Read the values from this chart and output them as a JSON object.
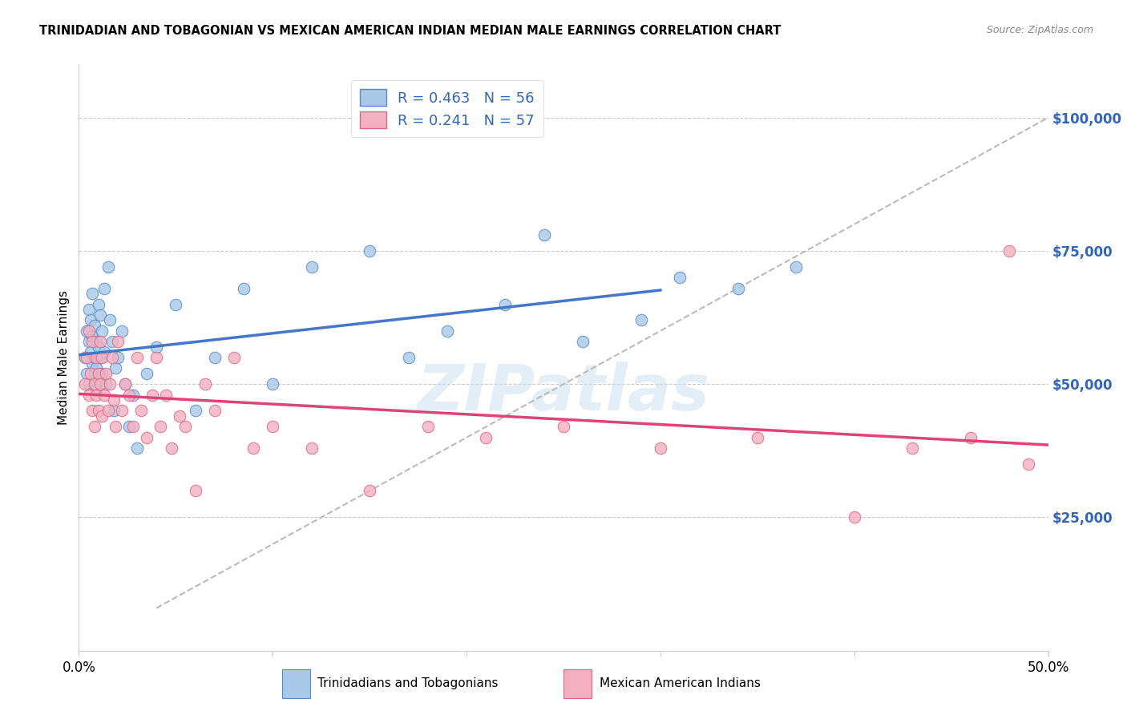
{
  "title": "TRINIDADIAN AND TOBAGONIAN VS MEXICAN AMERICAN INDIAN MEDIAN MALE EARNINGS CORRELATION CHART",
  "source": "Source: ZipAtlas.com",
  "ylabel": "Median Male Earnings",
  "xlim": [
    0,
    0.5
  ],
  "ylim": [
    0,
    110000
  ],
  "yticks": [
    0,
    25000,
    50000,
    75000,
    100000
  ],
  "xticks": [
    0.0,
    0.1,
    0.2,
    0.3,
    0.4,
    0.5
  ],
  "blue_R": 0.463,
  "blue_N": 56,
  "pink_R": 0.241,
  "pink_N": 57,
  "blue_label": "Trinidadians and Tobagonians",
  "pink_label": "Mexican American Indians",
  "blue_color": "#a8c8e8",
  "pink_color": "#f4b0c0",
  "blue_edge_color": "#5588cc",
  "pink_edge_color": "#dd6688",
  "blue_line_color": "#4477cc",
  "pink_line_color": "#dd4477",
  "right_label_color": "#3366bb",
  "dashed_line_color": "#bbbbbb",
  "watermark_color": "#c8dff0",
  "watermark_text": "ZIPatlas",
  "blue_x": [
    0.003,
    0.004,
    0.004,
    0.005,
    0.005,
    0.005,
    0.006,
    0.006,
    0.007,
    0.007,
    0.007,
    0.008,
    0.008,
    0.008,
    0.009,
    0.009,
    0.009,
    0.01,
    0.01,
    0.01,
    0.011,
    0.011,
    0.012,
    0.012,
    0.013,
    0.013,
    0.014,
    0.015,
    0.016,
    0.017,
    0.018,
    0.019,
    0.02,
    0.022,
    0.024,
    0.026,
    0.028,
    0.03,
    0.035,
    0.04,
    0.05,
    0.06,
    0.07,
    0.085,
    0.1,
    0.12,
    0.15,
    0.17,
    0.19,
    0.22,
    0.24,
    0.26,
    0.29,
    0.31,
    0.34,
    0.37
  ],
  "blue_y": [
    55000,
    60000,
    52000,
    58000,
    64000,
    50000,
    56000,
    62000,
    54000,
    67000,
    59000,
    52000,
    61000,
    55000,
    58000,
    49000,
    53000,
    65000,
    57000,
    51000,
    63000,
    55000,
    60000,
    52000,
    68000,
    56000,
    50000,
    72000,
    62000,
    58000,
    45000,
    53000,
    55000,
    60000,
    50000,
    42000,
    48000,
    38000,
    52000,
    57000,
    65000,
    45000,
    55000,
    68000,
    50000,
    72000,
    75000,
    55000,
    60000,
    65000,
    78000,
    58000,
    62000,
    70000,
    68000,
    72000
  ],
  "pink_x": [
    0.003,
    0.004,
    0.005,
    0.005,
    0.006,
    0.007,
    0.007,
    0.008,
    0.008,
    0.009,
    0.009,
    0.01,
    0.01,
    0.011,
    0.011,
    0.012,
    0.012,
    0.013,
    0.014,
    0.015,
    0.016,
    0.017,
    0.018,
    0.019,
    0.02,
    0.022,
    0.024,
    0.026,
    0.028,
    0.03,
    0.032,
    0.035,
    0.038,
    0.04,
    0.042,
    0.045,
    0.048,
    0.052,
    0.055,
    0.06,
    0.065,
    0.07,
    0.08,
    0.09,
    0.1,
    0.12,
    0.15,
    0.18,
    0.21,
    0.25,
    0.3,
    0.35,
    0.4,
    0.43,
    0.46,
    0.48,
    0.49
  ],
  "pink_y": [
    50000,
    55000,
    48000,
    60000,
    52000,
    45000,
    58000,
    50000,
    42000,
    55000,
    48000,
    52000,
    45000,
    58000,
    50000,
    44000,
    55000,
    48000,
    52000,
    45000,
    50000,
    55000,
    47000,
    42000,
    58000,
    45000,
    50000,
    48000,
    42000,
    55000,
    45000,
    40000,
    48000,
    55000,
    42000,
    48000,
    38000,
    44000,
    42000,
    30000,
    50000,
    45000,
    55000,
    38000,
    42000,
    38000,
    30000,
    42000,
    40000,
    42000,
    38000,
    40000,
    25000,
    38000,
    40000,
    75000,
    35000
  ]
}
